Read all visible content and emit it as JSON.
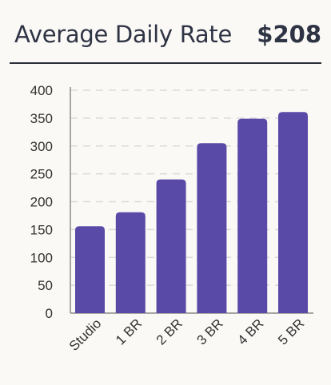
{
  "header": {
    "title": "Average Daily Rate",
    "metric": "$208"
  },
  "colors": {
    "bar": "#5a4aa8",
    "grid": "#d9d9d9",
    "axis": "#8a8a8a",
    "text": "#333333"
  },
  "chart_data": {
    "type": "bar",
    "title": "",
    "xlabel": "",
    "ylabel": "",
    "categories": [
      "Studio",
      "1 BR",
      "2 BR",
      "3 BR",
      "4 BR",
      "5 BR"
    ],
    "values": [
      156,
      181,
      240,
      305,
      349,
      361
    ],
    "ylim": [
      0,
      400
    ],
    "yticks": [
      0,
      50,
      100,
      150,
      200,
      250,
      300,
      350,
      400
    ],
    "grid": true,
    "grid_style": "dashed",
    "legend": "none"
  }
}
